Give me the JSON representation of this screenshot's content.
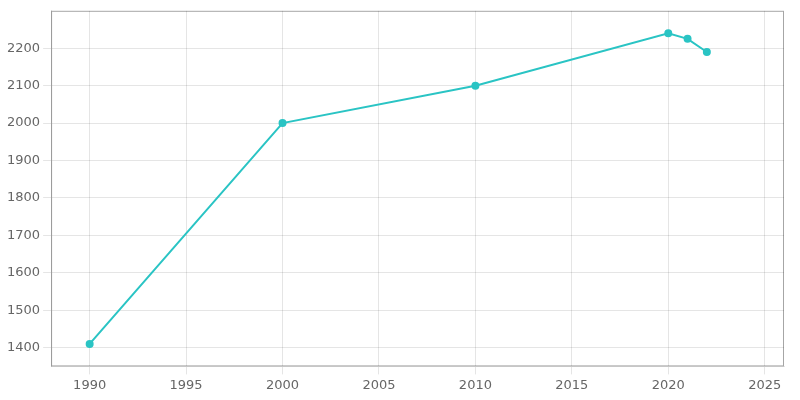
{
  "chart_data": {
    "type": "line",
    "x": [
      1990,
      2000,
      2010,
      2020,
      2021,
      2022
    ],
    "values": [
      1410,
      2000,
      2100,
      2240,
      2225,
      2190
    ],
    "color": "#2ac4c4",
    "marker": "circle",
    "xlim": [
      1988,
      2026
    ],
    "ylim": [
      1350,
      2300
    ],
    "xticks": [
      1990,
      1995,
      2000,
      2005,
      2010,
      2015,
      2020,
      2025
    ],
    "yticks": [
      1400,
      1500,
      1600,
      1700,
      1800,
      1900,
      2000,
      2100,
      2200
    ],
    "grid": true
  }
}
